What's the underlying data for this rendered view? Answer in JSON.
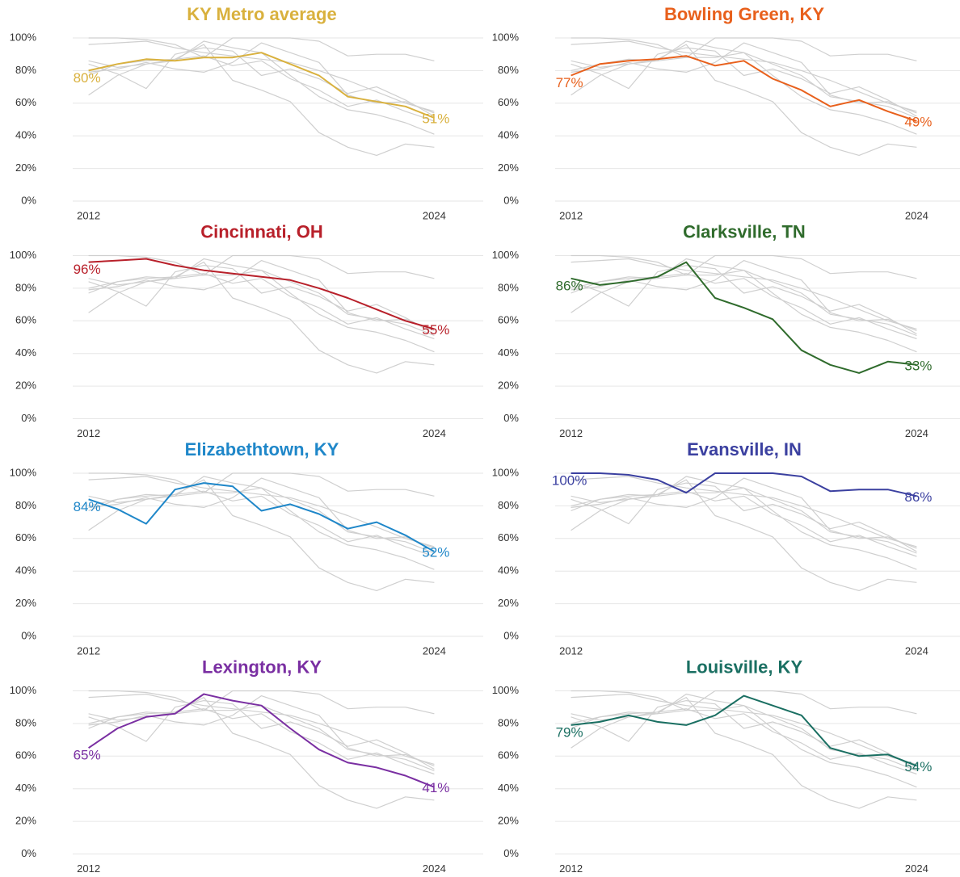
{
  "chart_data": {
    "type": "line",
    "x": [
      2012,
      2013,
      2014,
      2015,
      2016,
      2017,
      2018,
      2019,
      2020,
      2021,
      2022,
      2023,
      2024
    ],
    "xlim": [
      2011.45,
      2025.7
    ],
    "xticks": [
      2012,
      2024
    ],
    "ylim": [
      0,
      100
    ],
    "yticks": [
      {
        "value": 0,
        "label": "0%"
      },
      {
        "value": 20,
        "label": "20%"
      },
      {
        "value": 40,
        "label": "40%"
      },
      {
        "value": 60,
        "label": "60%"
      },
      {
        "value": 80,
        "label": "80%"
      },
      {
        "value": 100,
        "label": "100%"
      }
    ],
    "grid": true,
    "context_color": "#cfcfcf",
    "series": [
      {
        "name": "KY Metro average",
        "color": "#d9b13e",
        "values": [
          80,
          84,
          87,
          86,
          88,
          88,
          91,
          84,
          77,
          64,
          61,
          58,
          51
        ],
        "value_labels": [
          "80%",
          null,
          null,
          null,
          null,
          null,
          null,
          null,
          null,
          null,
          null,
          null,
          "51%"
        ]
      },
      {
        "name": "Bowling Green, KY",
        "color": "#e8601c",
        "values": [
          77,
          84,
          86,
          87,
          89,
          83,
          86,
          75,
          68,
          58,
          62,
          55,
          49
        ],
        "value_labels": [
          "77%",
          null,
          null,
          null,
          null,
          null,
          null,
          null,
          null,
          null,
          null,
          null,
          "49%"
        ]
      },
      {
        "name": "Cincinnati, OH",
        "color": "#b8202a",
        "values": [
          96,
          97,
          98,
          94,
          91,
          89,
          87,
          85,
          80,
          74,
          67,
          60,
          55
        ],
        "value_labels": [
          "96%",
          null,
          null,
          null,
          null,
          null,
          null,
          null,
          null,
          null,
          null,
          null,
          "55%"
        ]
      },
      {
        "name": "Clarksville, TN",
        "color": "#2f6b2c",
        "values": [
          86,
          82,
          84,
          87,
          96,
          74,
          68,
          61,
          42,
          33,
          28,
          35,
          33
        ],
        "value_labels": [
          "86%",
          null,
          null,
          null,
          null,
          null,
          null,
          null,
          null,
          null,
          null,
          null,
          "33%"
        ]
      },
      {
        "name": "Elizabethtown, KY",
        "color": "#1f87c9",
        "values": [
          84,
          78,
          69,
          90,
          94,
          92,
          77,
          81,
          75,
          66,
          70,
          62,
          52
        ],
        "value_labels": [
          "84%",
          null,
          null,
          null,
          null,
          null,
          null,
          null,
          null,
          null,
          null,
          null,
          "52%"
        ]
      },
      {
        "name": "Evansville, IN",
        "color": "#3b40a0",
        "values": [
          100,
          100,
          99,
          96,
          88,
          100,
          100,
          100,
          98,
          89,
          90,
          90,
          86
        ],
        "value_labels": [
          "100%",
          null,
          null,
          null,
          null,
          null,
          null,
          null,
          null,
          null,
          null,
          null,
          "86%"
        ]
      },
      {
        "name": "Lexington, KY",
        "color": "#7a2fa2",
        "values": [
          65,
          77,
          84,
          86,
          98,
          94,
          91,
          77,
          64,
          56,
          53,
          48,
          41
        ],
        "value_labels": [
          "65%",
          null,
          null,
          null,
          null,
          null,
          null,
          null,
          null,
          null,
          null,
          null,
          "41%"
        ]
      },
      {
        "name": "Louisville, KY",
        "color": "#1a6f62",
        "values": [
          79,
          81,
          85,
          81,
          79,
          85,
          97,
          91,
          85,
          65,
          60,
          61,
          54
        ],
        "value_labels": [
          "79%",
          null,
          null,
          null,
          null,
          null,
          null,
          null,
          null,
          null,
          null,
          null,
          "54%"
        ]
      }
    ]
  }
}
